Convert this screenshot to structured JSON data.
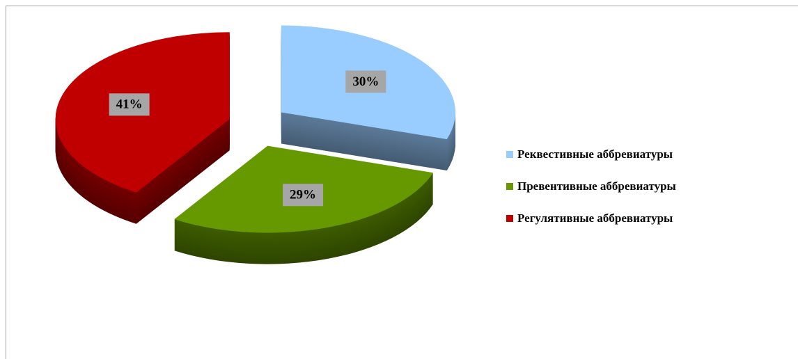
{
  "chart_data": {
    "type": "pie",
    "categories": [
      "Реквестивные аббревиатуры",
      "Превентивные аббревиатуры",
      "Регулятивные аббревиатуры"
    ],
    "values": [
      30,
      29,
      41
    ],
    "value_labels": [
      "30%",
      "29%",
      "41%"
    ],
    "colors": [
      "#99ccff",
      "#669900",
      "#c00000"
    ],
    "legend": "right"
  }
}
